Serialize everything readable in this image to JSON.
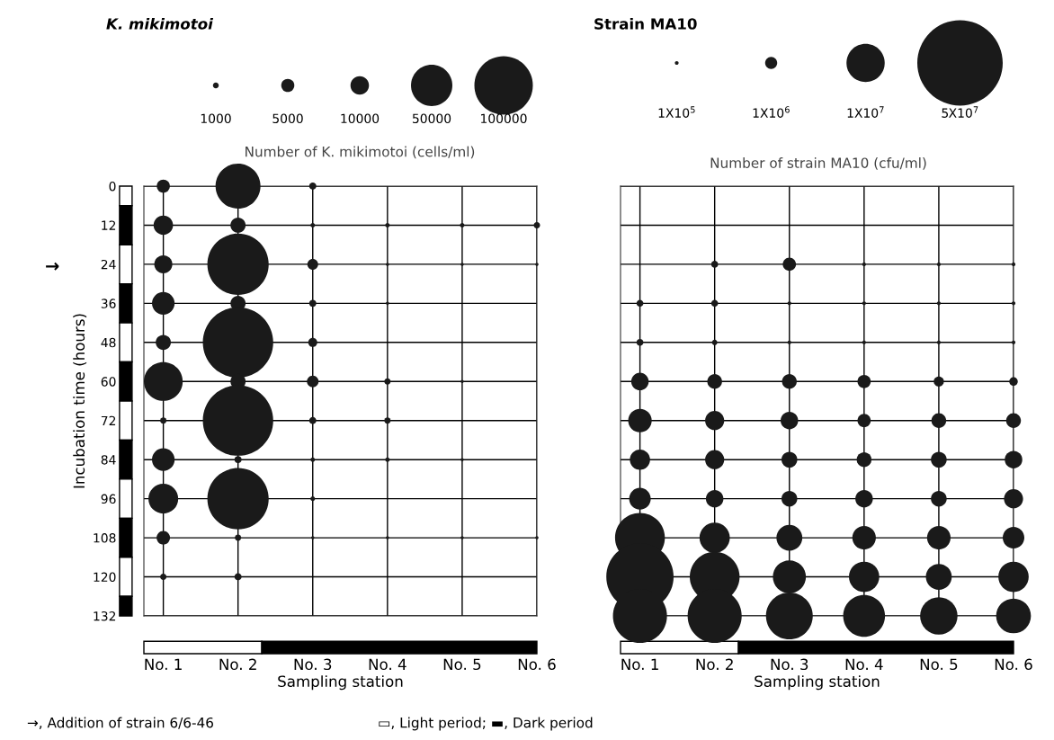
{
  "chart_data": [
    {
      "type": "bubble",
      "title": "K. mikimotoi",
      "legend_title": "Number of K. mikimotoi (cells/ml)",
      "xlabel": "Sampling station",
      "ylabel": "Incubation time (hours)",
      "size_legend": [
        1000,
        5000,
        10000,
        50000,
        100000
      ],
      "xlim": [
        0.74,
        6
      ],
      "xticks": [
        {
          "value": 1,
          "label": "No. 1"
        },
        {
          "value": 2,
          "label": "No. 2"
        },
        {
          "value": 3,
          "label": "No. 3"
        },
        {
          "value": 4,
          "label": "No. 4"
        },
        {
          "value": 5,
          "label": "No. 5"
        },
        {
          "value": 6,
          "label": "No. 6"
        }
      ],
      "ylim": [
        132,
        0
      ],
      "yticks": [
        0,
        12,
        24,
        36,
        48,
        60,
        72,
        84,
        96,
        108,
        120,
        132
      ],
      "grid": true,
      "series": [
        {
          "color": "#1a1a1a",
          "x": [
            1,
            1,
            1,
            1,
            1,
            1,
            1,
            1,
            1,
            1,
            1
          ],
          "values": [
            0,
            12,
            24,
            36,
            48,
            60,
            72,
            84,
            96,
            108,
            120
          ],
          "sizes": [
            5000,
            11000,
            9500,
            15000,
            6700,
            44000,
            1200,
            15000,
            26000,
            5300,
            1200
          ]
        },
        {
          "color": "#1a1a1a",
          "x": [
            2,
            2,
            2,
            2,
            2,
            2,
            2,
            2,
            2,
            2,
            2
          ],
          "values": [
            0,
            12,
            24,
            36,
            48,
            60,
            72,
            84,
            96,
            108,
            120
          ],
          "sizes": [
            59000,
            6700,
            110000,
            6700,
            145000,
            6700,
            145000,
            1500,
            110000,
            1200,
            1500
          ]
        },
        {
          "color": "#1a1a1a",
          "x": [
            3,
            3,
            3,
            3,
            3,
            3,
            3,
            3,
            3,
            3
          ],
          "values": [
            0,
            12,
            24,
            36,
            48,
            60,
            72,
            84,
            96,
            108
          ],
          "sizes": [
            1500,
            600,
            3400,
            1500,
            2400,
            4000,
            1500,
            600,
            600,
            300
          ]
        },
        {
          "color": "#1a1a1a",
          "x": [
            4,
            4,
            4,
            4,
            4,
            4,
            4
          ],
          "values": [
            12,
            24,
            36,
            60,
            72,
            84,
            108
          ],
          "sizes": [
            600,
            300,
            300,
            1200,
            1200,
            600,
            300
          ]
        },
        {
          "color": "#1a1a1a",
          "x": [
            5,
            5,
            5,
            5,
            5
          ],
          "values": [
            12,
            24,
            60,
            84,
            108
          ],
          "sizes": [
            600,
            300,
            300,
            300,
            300
          ]
        },
        {
          "color": "#1a1a1a",
          "x": [
            6,
            6,
            6
          ],
          "values": [
            12,
            24,
            108
          ],
          "sizes": [
            1200,
            300,
            300
          ]
        }
      ],
      "annotations": [
        "→",
        "→, Addition of strain 6/6-46",
        "▭, Light period; ▬, Dark period"
      ]
    },
    {
      "type": "bubble",
      "title": "Strain MA10",
      "legend_title": "Number of strain MA10 (cfu/ml)",
      "xlabel": "Sampling station",
      "size_legend": [
        {
          "value": 100000,
          "label": "1X10$^{5}$"
        },
        {
          "value": 1000000,
          "label": "1X10$^{6}$"
        },
        {
          "value": 10000000,
          "label": "1X10$^{7}$"
        },
        {
          "value": 50000000,
          "label": "5X10$^{7}$"
        }
      ],
      "xlim": [
        0.74,
        6
      ],
      "xticks": [
        {
          "value": 1,
          "label": "No. 1"
        },
        {
          "value": 2,
          "label": "No. 2"
        },
        {
          "value": 3,
          "label": "No. 3"
        },
        {
          "value": 4,
          "label": "No. 4"
        },
        {
          "value": 5,
          "label": "No. 5"
        },
        {
          "value": 6,
          "label": "No. 6"
        }
      ],
      "ylim": [
        132,
        0
      ],
      "yticks": [
        0,
        12,
        24,
        36,
        48,
        60,
        72,
        84,
        96,
        108,
        120,
        132
      ],
      "grid": true,
      "tick_labels": "x",
      "series": [
        {
          "color": "#1a1a1a",
          "x": [
            1,
            1,
            1,
            1,
            1,
            1,
            1,
            1,
            1
          ],
          "values": [
            36,
            48,
            60,
            72,
            84,
            96,
            108,
            120,
            132
          ],
          "sizes": [
            330000,
            330000,
            2100000,
            3800000,
            2800000,
            3200000,
            17000000,
            31000000,
            20000000
          ]
        },
        {
          "color": "#1a1a1a",
          "x": [
            2,
            2,
            2,
            2,
            2,
            2,
            2,
            2,
            2,
            2
          ],
          "values": [
            24,
            36,
            48,
            60,
            72,
            84,
            96,
            108,
            120,
            132
          ],
          "sizes": [
            330000,
            330000,
            200000,
            1500000,
            2500000,
            2500000,
            2100000,
            6300000,
            17000000,
            20000000
          ]
        },
        {
          "color": "#1a1a1a",
          "x": [
            3,
            3,
            3,
            3,
            3,
            3,
            3,
            3,
            3,
            3
          ],
          "values": [
            24,
            36,
            48,
            60,
            72,
            84,
            96,
            108,
            120,
            132
          ],
          "sizes": [
            1200000,
            100000,
            100000,
            1500000,
            2100000,
            1700000,
            1700000,
            4600000,
            7500000,
            15000000
          ]
        },
        {
          "color": "#1a1a1a",
          "x": [
            4,
            4,
            4,
            4,
            4,
            4,
            4,
            4,
            4,
            4
          ],
          "values": [
            24,
            36,
            48,
            60,
            72,
            84,
            96,
            108,
            120,
            132
          ],
          "sizes": [
            100000,
            100000,
            100000,
            1200000,
            1200000,
            1500000,
            2100000,
            3800000,
            6300000,
            12000000
          ]
        },
        {
          "color": "#1a1a1a",
          "x": [
            5,
            5,
            5,
            5,
            5,
            5,
            5,
            5,
            5,
            5
          ],
          "values": [
            24,
            36,
            48,
            60,
            72,
            84,
            96,
            108,
            120,
            132
          ],
          "sizes": [
            100000,
            100000,
            100000,
            700000,
            1500000,
            1700000,
            1700000,
            3800000,
            4600000,
            9600000
          ]
        },
        {
          "color": "#1a1a1a",
          "x": [
            6,
            6,
            6,
            6,
            6,
            6,
            6,
            6,
            6,
            6
          ],
          "values": [
            24,
            36,
            48,
            60,
            72,
            84,
            96,
            108,
            120,
            132
          ],
          "sizes": [
            100000,
            100000,
            100000,
            500000,
            1500000,
            2100000,
            2500000,
            3200000,
            6300000,
            8300000
          ]
        }
      ]
    }
  ]
}
